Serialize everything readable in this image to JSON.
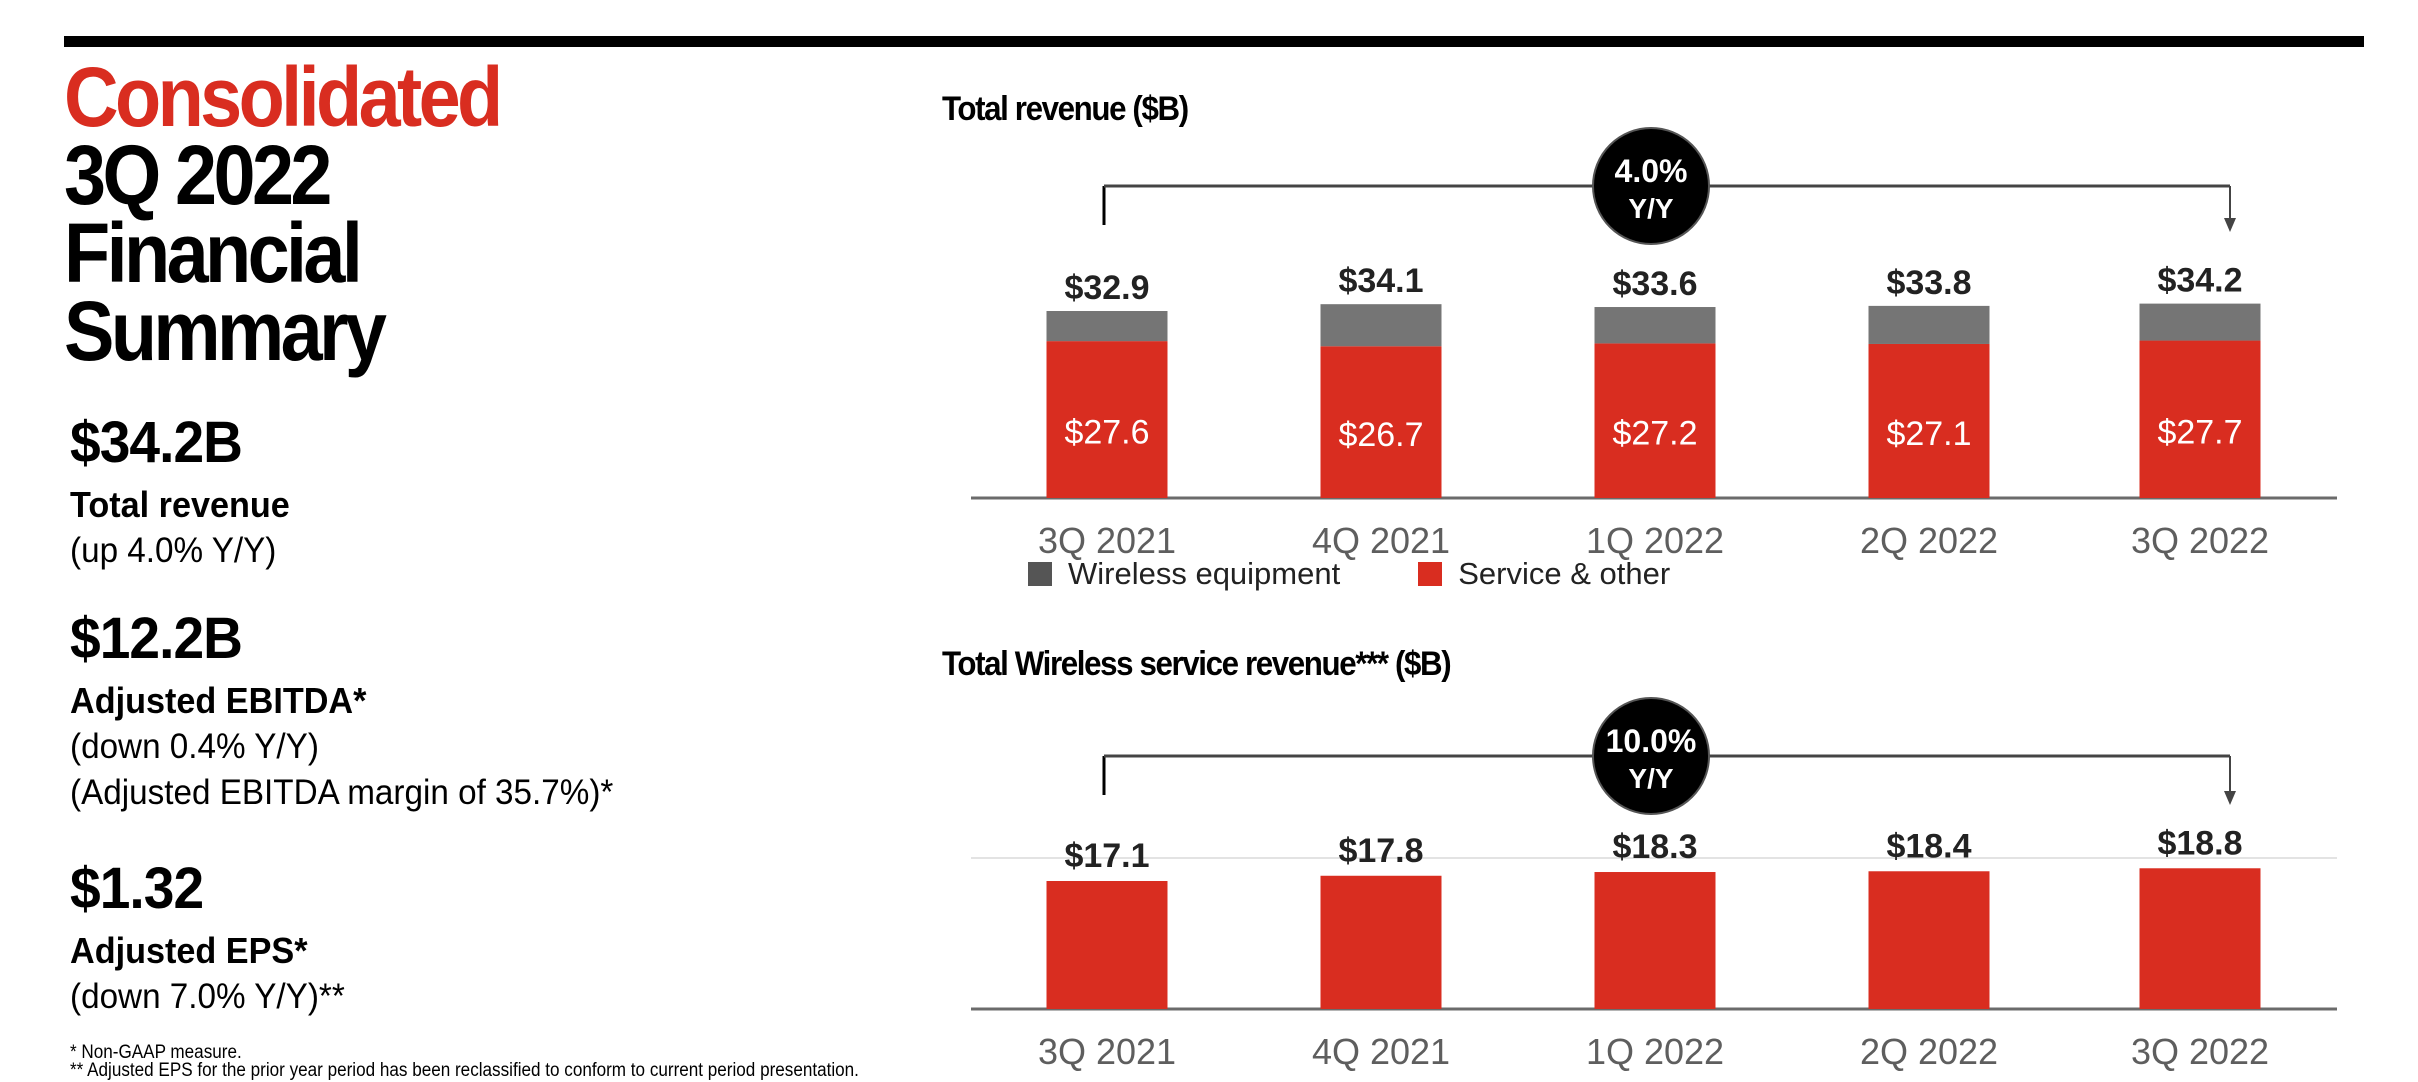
{
  "header": {
    "title_lines": [
      "Consolidated",
      "3Q 2022",
      "Financial",
      "Summary"
    ],
    "accent_color": "#d92d20"
  },
  "metrics": [
    {
      "value": "$34.2B",
      "label": "Total revenue",
      "notes": [
        "(up 4.0% Y/Y)"
      ]
    },
    {
      "value": "$12.2B",
      "label": "Adjusted EBITDA*",
      "notes": [
        "(down 0.4% Y/Y)",
        "(Adjusted EBITDA margin of 35.7%)*"
      ]
    },
    {
      "value": "$1.32",
      "label": "Adjusted EPS*",
      "notes": [
        "(down 7.0% Y/Y)**"
      ]
    }
  ],
  "footnotes": [
    "* Non-GAAP measure.",
    "** Adjusted EPS for the prior year period has been reclassified to conform to current period presentation."
  ],
  "colors": {
    "service": "#d92d20",
    "equipment": "#757575",
    "axis": "#6b6b6b",
    "badge": "#000000"
  },
  "chart_data": [
    {
      "type": "bar",
      "stacked": true,
      "title": "Total revenue ($B)",
      "categories": [
        "3Q 2021",
        "4Q 2021",
        "1Q 2022",
        "2Q 2022",
        "3Q 2022"
      ],
      "series": [
        {
          "name": "Service & other",
          "values": [
            27.6,
            26.7,
            27.2,
            27.1,
            27.7
          ],
          "labels": [
            "$27.6",
            "$26.7",
            "$27.2",
            "$27.1",
            "$27.7"
          ]
        },
        {
          "name": "Wireless equipment",
          "values": [
            5.3,
            7.4,
            6.4,
            6.7,
            6.5
          ]
        }
      ],
      "totals": [
        32.9,
        34.1,
        33.6,
        33.8,
        34.2
      ],
      "total_labels": [
        "$32.9",
        "$34.1",
        "$33.6",
        "$33.8",
        "$34.2"
      ],
      "growth_badge": {
        "value": "4.0%",
        "unit": "Y/Y",
        "from": "3Q 2021",
        "to": "3Q 2022"
      },
      "legend": [
        "Wireless equipment",
        "Service & other"
      ],
      "legend_position": "bottom-left",
      "xlabel": "",
      "ylabel": "",
      "ylim": [
        0,
        34.2
      ],
      "grid": false
    },
    {
      "type": "bar",
      "title": "Total Wireless service revenue*** ($B)",
      "categories": [
        "3Q 2021",
        "4Q 2021",
        "1Q 2022",
        "2Q 2022",
        "3Q 2022"
      ],
      "values": [
        17.1,
        17.8,
        18.3,
        18.4,
        18.8
      ],
      "value_labels": [
        "$17.1",
        "$17.8",
        "$18.3",
        "$18.4",
        "$18.8"
      ],
      "growth_badge": {
        "value": "10.0%",
        "unit": "Y/Y",
        "from": "3Q 2021",
        "to": "3Q 2022"
      },
      "xlabel": "",
      "ylabel": "",
      "ylim": [
        0,
        18.8
      ],
      "grid": false
    }
  ]
}
